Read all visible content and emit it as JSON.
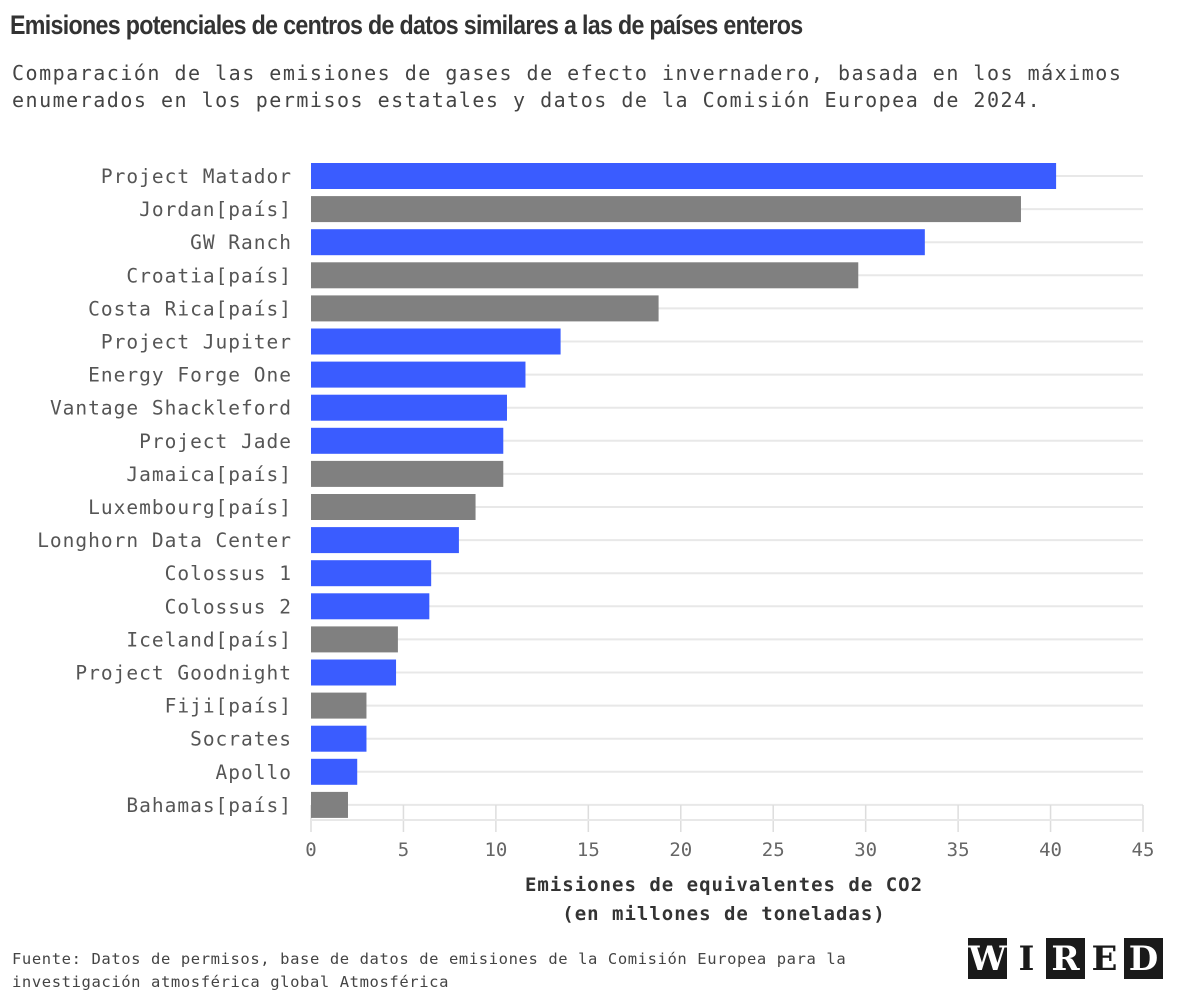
{
  "chart_data": {
    "type": "bar",
    "orientation": "horizontal",
    "title": "Emisiones potenciales de centros de datos similares a las de países enteros",
    "subtitle": "Comparación de las emisiones de gases de efecto invernadero, basada en los máximos enumerados en los permisos estatales y datos de la Comisión Europea de 2024.",
    "xlabel": "Emisiones de equivalentes de CO2",
    "xlabel2": "(en millones de toneladas)",
    "xlim": [
      0,
      45
    ],
    "xticks": [
      0,
      5,
      10,
      15,
      20,
      25,
      30,
      35,
      40,
      45
    ],
    "grid": true,
    "colors": {
      "data_center": "#3a5cff",
      "country": "#808080"
    },
    "categories": [
      "Project Matador",
      "Jordan[país]",
      "GW Ranch",
      "Croatia[país]",
      "Costa Rica[país]",
      "Project Jupiter",
      "Energy Forge One",
      "Vantage Shackleford",
      "Project Jade",
      "Jamaica[país]",
      "Luxembourg[país]",
      "Longhorn Data Center",
      "Colossus 1",
      "Colossus 2",
      "Iceland[país]",
      "Project Goodnight",
      "Fiji[país]",
      "Socrates",
      "Apollo",
      "Bahamas[país]"
    ],
    "values": [
      40.3,
      38.4,
      33.2,
      29.6,
      18.8,
      13.5,
      11.6,
      10.6,
      10.4,
      10.4,
      8.9,
      8.0,
      6.5,
      6.4,
      4.7,
      4.6,
      3.0,
      3.0,
      2.5,
      2.0
    ],
    "kind": [
      "data_center",
      "country",
      "data_center",
      "country",
      "country",
      "data_center",
      "data_center",
      "data_center",
      "data_center",
      "country",
      "country",
      "data_center",
      "data_center",
      "data_center",
      "country",
      "data_center",
      "country",
      "data_center",
      "data_center",
      "country"
    ]
  },
  "source": "Fuente: Datos de permisos, base de datos de emisiones de la Comisión Europea para la investigación atmosférica global Atmosférica",
  "logo": "WIRED"
}
